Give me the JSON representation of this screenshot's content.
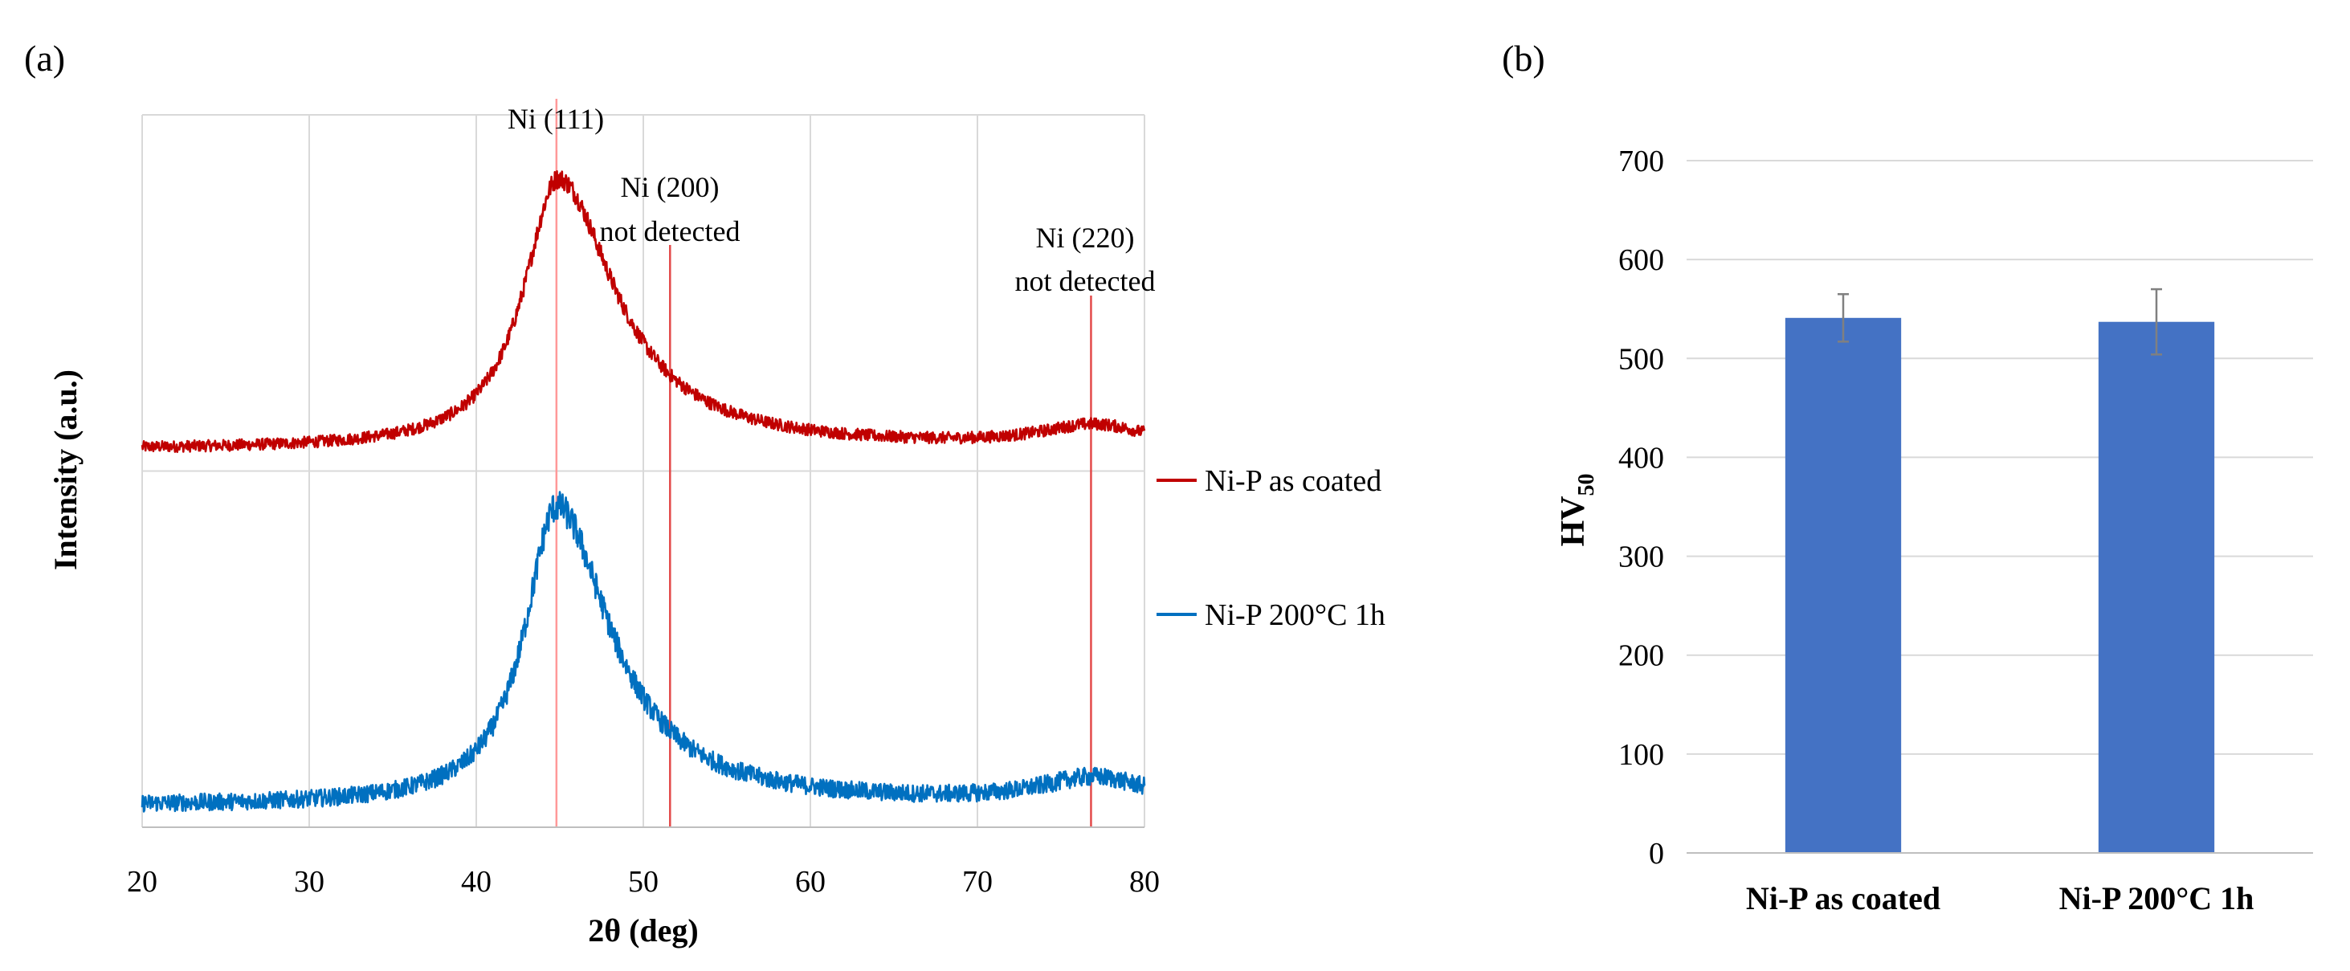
{
  "chart_data": [
    {
      "panel_label": "(a)",
      "type": "line",
      "title": "",
      "xlabel": "2θ (deg)",
      "ylabel": "Intensity (a.u.)",
      "xlim": [
        20,
        80
      ],
      "xticks": [
        20,
        30,
        40,
        50,
        60,
        70,
        80
      ],
      "xtick_labels": [
        "20",
        "30",
        "40",
        "50",
        "60",
        "70",
        "80"
      ],
      "yticks_shown": false,
      "grid": true,
      "legend_position": "right",
      "reference_lines": [
        {
          "x": 44.8,
          "color": "#ff9999",
          "label": "Ni (111)",
          "note": ""
        },
        {
          "x": 51.6,
          "color": "#e34a4a",
          "label": "Ni (200)",
          "note": "not detected"
        },
        {
          "x": 76.8,
          "color": "#e34a4a",
          "label": "Ni (220)",
          "note": "not detected"
        }
      ],
      "series": [
        {
          "name": "Ni-P as coated",
          "color": "#c00000",
          "baseline": 0.53,
          "peaks": [
            {
              "center": 44.9,
              "height": 0.38,
              "width": 2.5,
              "tail_right": 1.65
            },
            {
              "center": 77.0,
              "height": 0.03,
              "width": 4.0,
              "tail_right": 1.0
            }
          ],
          "noise": 0.008
        },
        {
          "name": "Ni-P 200°C 1h",
          "color": "#0070c0",
          "baseline": 0.03,
          "peaks": [
            {
              "center": 44.8,
              "height": 0.42,
              "width": 2.3,
              "tail_right": 1.7
            },
            {
              "center": 77.0,
              "height": 0.035,
              "width": 4.0,
              "tail_right": 1.0
            }
          ],
          "noise": 0.012
        }
      ]
    },
    {
      "panel_label": "(b)",
      "type": "bar",
      "title": "",
      "xlabel": "",
      "ylabel": "HV",
      "ylabel_sub": "50",
      "ylim": [
        0,
        700
      ],
      "yticks": [
        0,
        100,
        200,
        300,
        400,
        500,
        600,
        700
      ],
      "ytick_labels": [
        "0",
        "100",
        "200",
        "300",
        "400",
        "500",
        "600",
        "700"
      ],
      "grid": true,
      "bar_color": "#4472c4",
      "categories": [
        "Ni-P as coated",
        "Ni-P 200°C 1h"
      ],
      "values": [
        541,
        537
      ],
      "errors": [
        24,
        33
      ],
      "error_color": "#808080"
    }
  ]
}
